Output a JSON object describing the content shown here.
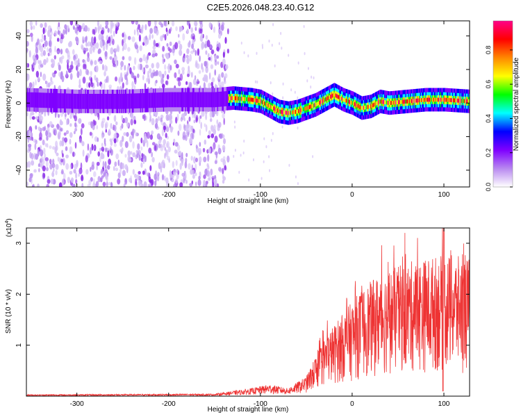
{
  "title": "C2E5.2026.048.23.40.G12",
  "chart_data": [
    {
      "type": "heatmap",
      "xlabel": "Height of straight line (km)",
      "ylabel": "Frequency (Hz)",
      "xlim": [
        -355,
        128
      ],
      "ylim": [
        -50,
        49
      ],
      "xticks": [
        -300,
        -200,
        -100,
        0,
        100
      ],
      "xtick_labels": [
        "-300",
        "-200",
        "-100",
        "0",
        "100"
      ],
      "yticks": [
        -40,
        -20,
        0,
        20,
        40
      ],
      "ytick_labels": [
        "-40",
        "-20",
        "0",
        "20",
        "40"
      ],
      "colorbar": {
        "label": "Normalized spectral amplitude",
        "range": [
          0,
          0.97
        ],
        "ticks": [
          0.0,
          0.2,
          0.4,
          0.6,
          0.8
        ],
        "tick_labels": [
          "0.0",
          "0.2",
          "0.4",
          "0.6",
          "0.8"
        ],
        "colormap": [
          "#ffffff",
          "#b888f0",
          "#7f00ff",
          "#0000ff",
          "#00ffff",
          "#00ff00",
          "#ffff00",
          "#ff8800",
          "#ff0000",
          "#ff0088"
        ]
      },
      "ridge": {
        "x": [
          -355,
          -300,
          -250,
          -200,
          -150,
          -130,
          -110,
          -100,
          -90,
          -80,
          -70,
          -60,
          -50,
          -40,
          -30,
          -20,
          -10,
          0,
          10,
          20,
          30,
          40,
          60,
          80,
          100,
          128
        ],
        "y": [
          2,
          1,
          1,
          2,
          2,
          3,
          2,
          1,
          -2,
          -5,
          -6,
          -5,
          -3,
          -1,
          2,
          5,
          2,
          0,
          -3,
          -2,
          1,
          0,
          1,
          2,
          2,
          1
        ]
      }
    },
    {
      "type": "line",
      "xlabel": "Height of straight line (km)",
      "ylabel": "SNR (10 * v/v)",
      "exponent_label": "(x10",
      "exponent_power": "4",
      "exponent_close": ")",
      "xlim": [
        -355,
        128
      ],
      "ylim": [
        0,
        3.3
      ],
      "xticks": [
        -300,
        -200,
        -100,
        0,
        100
      ],
      "xtick_labels": [
        "-300",
        "-200",
        "-100",
        "0",
        "100"
      ],
      "yticks": [
        1,
        2,
        3
      ],
      "ytick_labels": [
        "1",
        "2",
        "3"
      ],
      "color": "#ee3333",
      "envelope": {
        "x": [
          -355,
          -150,
          -110,
          -90,
          -70,
          -50,
          -40,
          -30,
          -20,
          -10,
          0,
          10,
          20,
          30,
          40,
          60,
          80,
          100,
          128
        ],
        "y": [
          0.02,
          0.03,
          0.1,
          0.15,
          0.1,
          0.25,
          0.5,
          0.75,
          0.9,
          1.05,
          1.2,
          1.35,
          1.45,
          1.55,
          1.6,
          1.7,
          1.75,
          1.8,
          1.75
        ]
      }
    }
  ]
}
